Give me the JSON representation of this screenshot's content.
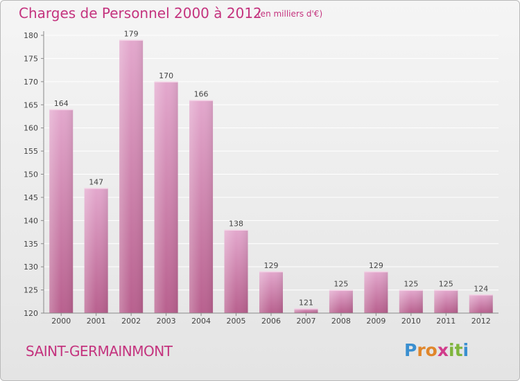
{
  "title": "Charges de Personnel 2000 à 2012",
  "subtitle": "(en milliers d'€)",
  "place": "SAINT-GERMAINMONT",
  "logo": {
    "text": "Proxiti",
    "letters": [
      "P",
      "r",
      "o",
      "x",
      "i",
      "t",
      "i"
    ],
    "colors": [
      "#3a8fd0",
      "#e0862a",
      "#e0862a",
      "#d13c8b",
      "#7fb53c",
      "#7fb53c",
      "#3a8fd0"
    ]
  },
  "colors": {
    "accent": "#c4337e",
    "bar_top": "#e3a8cd",
    "bar_bottom": "#b8608e"
  },
  "chart_data": {
    "type": "bar",
    "title": "Charges de Personnel 2000 à 2012",
    "subtitle": "(en milliers d'€)",
    "categories": [
      "2000",
      "2001",
      "2002",
      "2003",
      "2004",
      "2005",
      "2006",
      "2007",
      "2008",
      "2009",
      "2010",
      "2011",
      "2012"
    ],
    "values": [
      164,
      147,
      179,
      170,
      166,
      138,
      129,
      121,
      125,
      129,
      125,
      125,
      124
    ],
    "ylim": [
      120,
      180
    ],
    "yticks": [
      120,
      125,
      130,
      135,
      140,
      145,
      150,
      155,
      160,
      165,
      170,
      175,
      180
    ],
    "grid": true,
    "xlabel": "",
    "ylabel": ""
  }
}
